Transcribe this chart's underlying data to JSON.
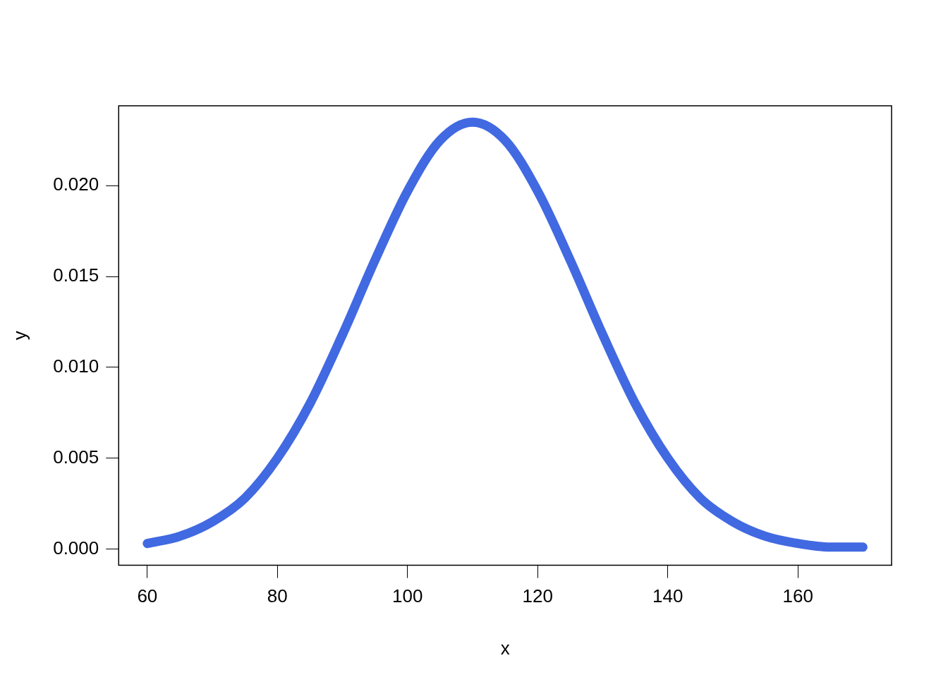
{
  "chart_data": {
    "type": "line",
    "xlabel": "x",
    "ylabel": "y",
    "x": [
      60,
      65,
      70,
      75,
      80,
      85,
      90,
      95,
      100,
      105,
      110,
      115,
      120,
      125,
      130,
      135,
      140,
      145,
      150,
      155,
      160,
      165,
      170
    ],
    "series": [
      {
        "color": "#4169e1",
        "values": [
          0.0003,
          0.0007,
          0.0015,
          0.0028,
          0.005,
          0.008,
          0.0118,
          0.0159,
          0.0197,
          0.0225,
          0.0235,
          0.0225,
          0.0197,
          0.0159,
          0.0118,
          0.008,
          0.005,
          0.0028,
          0.0015,
          0.0007,
          0.0003,
          0.0001,
          0.0001
        ]
      }
    ],
    "xlim": [
      55.6,
      174.4
    ],
    "ylim": [
      -0.0009,
      0.0244
    ],
    "xticks": [
      60,
      80,
      100,
      120,
      140,
      160
    ],
    "yticks": [
      {
        "value": 0,
        "label": "0.000"
      },
      {
        "value": 0.005,
        "label": "0.005"
      },
      {
        "value": 0.01,
        "label": "0.010"
      },
      {
        "value": 0.015,
        "label": "0.015"
      },
      {
        "value": 0.02,
        "label": "0.020"
      }
    ],
    "grid": false,
    "legend": false,
    "marker": "none",
    "line_style": "solid"
  }
}
